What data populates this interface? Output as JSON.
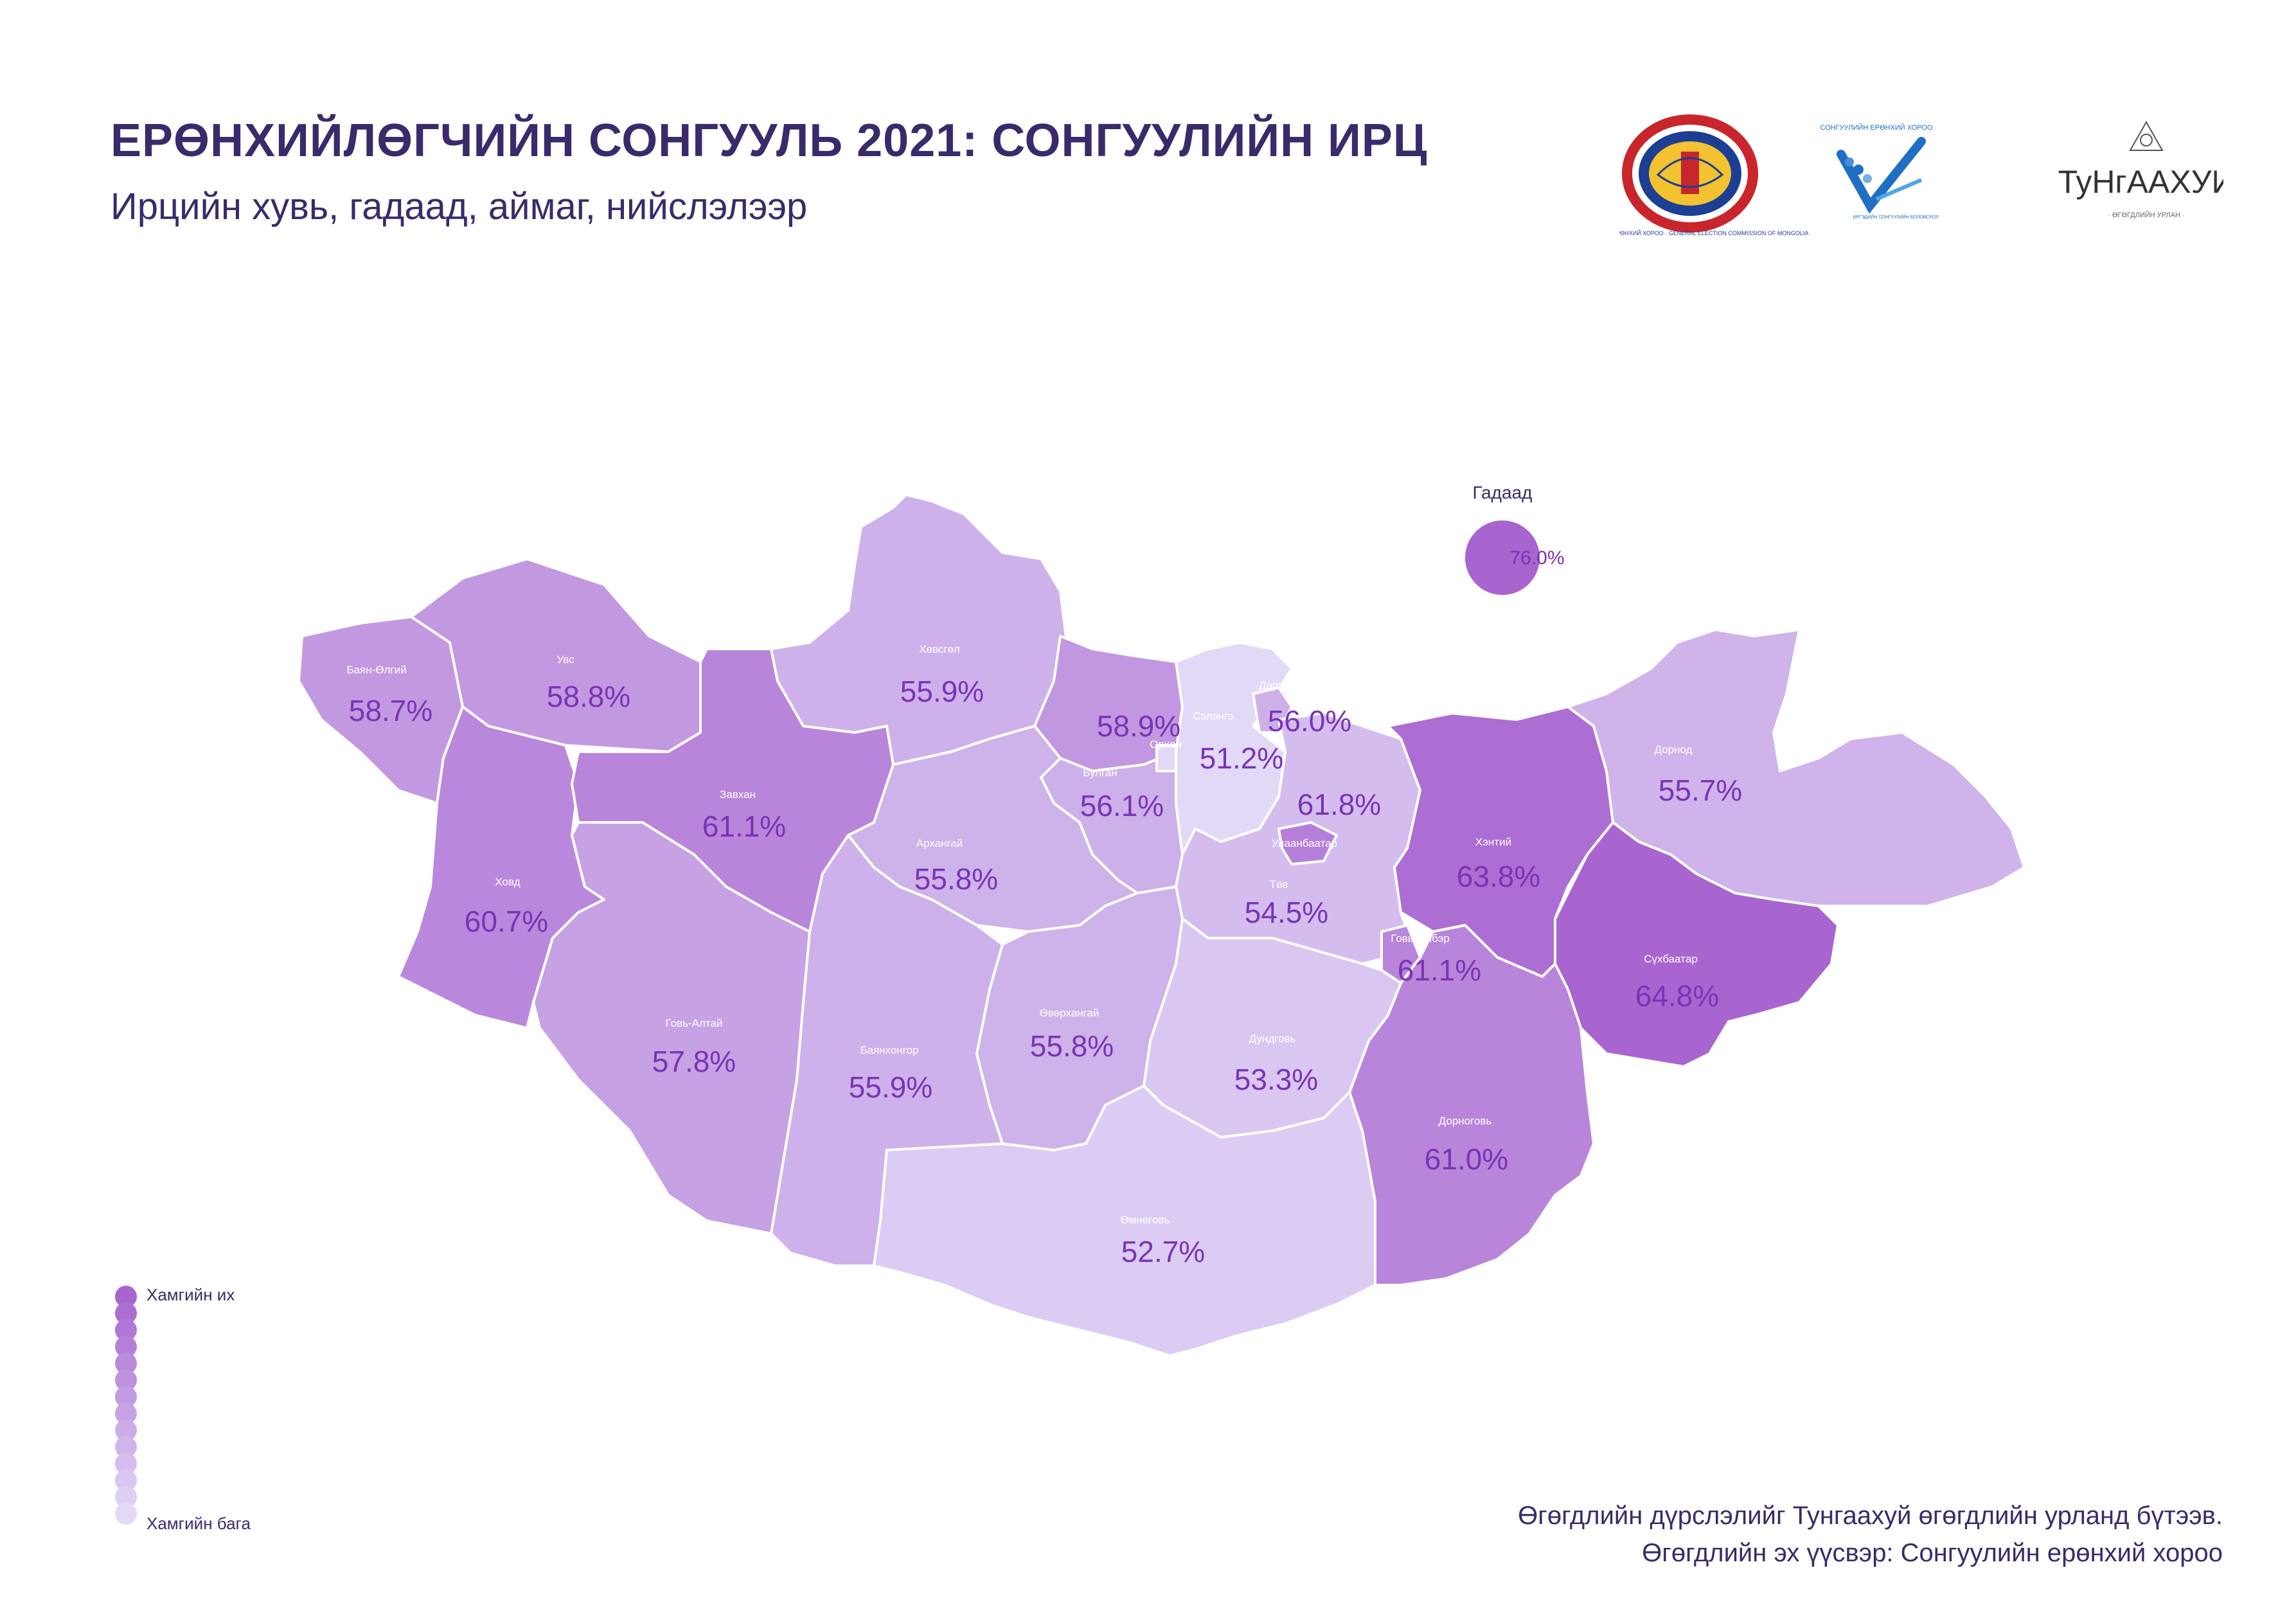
{
  "header": {
    "title": "ЕРӨНХИЙЛӨГЧИЙН СОНГУУЛЬ 2021:  СОНГУУЛИЙН ИРЦ",
    "subtitle": "Ирцийн хувь, гадаад, аймаг, нийслэлээр"
  },
  "logos": {
    "gec_ring_text": "СОНГУУЛИЙН ЕРӨНХИЙ ХОРОО · GENERAL ELECTION COMMISSION OF MONGOLIA",
    "voter_edu_top": "СОНГУУЛИЙН ЕРӨНХИЙ ХОРОО",
    "voter_edu_bottom": "ИРГЭДИЙН СОНГУУЛИЙН БОЛОВСРОЛ",
    "tungaakhui": "ТуНгААХУИ",
    "tungaakhui_tag": "· ӨГӨГДЛИЙН УРЛАН ·"
  },
  "abroad": {
    "label": "Гадаад",
    "value": "76.0%"
  },
  "regions": [
    {
      "id": "bayan-olgii",
      "name": "Баян-Өлгий",
      "value": "58.7%",
      "turnout": 58.7
    },
    {
      "id": "uvs",
      "name": "Увс",
      "value": "58.8%",
      "turnout": 58.8
    },
    {
      "id": "khovsgol",
      "name": "Хөвсгөл",
      "value": "55.9%",
      "turnout": 55.9
    },
    {
      "id": "bulgan",
      "name": "Булган",
      "value": "56.1%",
      "turnout": 56.1
    },
    {
      "id": "bulgan-north",
      "name": "",
      "value": "58.9%",
      "turnout": 58.9
    },
    {
      "id": "orkhon",
      "name": "Орхон",
      "value": "51.2%",
      "turnout": 51.2
    },
    {
      "id": "selenge",
      "name": "Сэлэнгэ",
      "value": "",
      "turnout": 51.2
    },
    {
      "id": "darkhan-uul",
      "name": "Дархан-Уул",
      "value": "56.0%",
      "turnout": 56.0
    },
    {
      "id": "dornod",
      "name": "Дорнод",
      "value": "55.7%",
      "turnout": 55.7
    },
    {
      "id": "zavkhan",
      "name": "Завхан",
      "value": "61.1%",
      "turnout": 61.1
    },
    {
      "id": "ulaanbaatar",
      "name": "Улаанбаатар",
      "value": "61.8%",
      "turnout": 61.8
    },
    {
      "id": "arkhangai",
      "name": "Архангай",
      "value": "55.8%",
      "turnout": 55.8
    },
    {
      "id": "khentii",
      "name": "Хэнтий",
      "value": "63.8%",
      "turnout": 63.8
    },
    {
      "id": "khovd",
      "name": "Ховд",
      "value": "60.7%",
      "turnout": 60.7
    },
    {
      "id": "tov",
      "name": "Төв",
      "value": "54.5%",
      "turnout": 54.5
    },
    {
      "id": "govisumber",
      "name": "Говьсүмбэр",
      "value": "61.1%",
      "turnout": 61.1
    },
    {
      "id": "sukhbaatar",
      "name": "Сүхбаатар",
      "value": "64.8%",
      "turnout": 64.8
    },
    {
      "id": "govi-altai",
      "name": "Говь-Алтай",
      "value": "57.8%",
      "turnout": 57.8
    },
    {
      "id": "ovorkhangai",
      "name": "Өвөрхангай",
      "value": "55.8%",
      "turnout": 55.8
    },
    {
      "id": "bayankhongor",
      "name": "Баянхонгор",
      "value": "55.9%",
      "turnout": 55.9
    },
    {
      "id": "dundgovi",
      "name": "Дундговь",
      "value": "53.3%",
      "turnout": 53.3
    },
    {
      "id": "dornogovi",
      "name": "Дорноговь",
      "value": "61.0%",
      "turnout": 61.0
    },
    {
      "id": "omnogovi",
      "name": "Өмнөговь",
      "value": "52.7%",
      "turnout": 52.7
    }
  ],
  "legend": {
    "top": "Хамгийн их",
    "bottom": "Хамгийн бага",
    "color_max": "#a865d0",
    "color_min": "#e2d9f7"
  },
  "footer": {
    "line1": "Өгөгдлийн дүрслэлийг Тунгаахуй өгөгдлийн урланд бүтээв.",
    "line2": "Өгөгдлийн эх үүсвэр: Сонгуулийн ерөнхий хороо"
  },
  "colors": {
    "title": "#3b2a6b",
    "value_text": "#7a33b5",
    "border": "#ffffff"
  }
}
